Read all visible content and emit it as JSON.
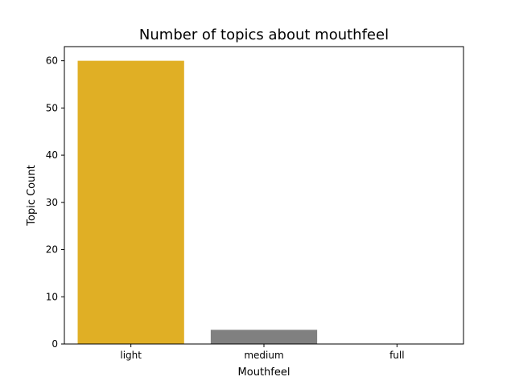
{
  "chart_data": {
    "type": "bar",
    "title": "Number of topics about mouthfeel",
    "xlabel": "Mouthfeel",
    "ylabel": "Topic Count",
    "categories": [
      "light",
      "medium",
      "full"
    ],
    "values": [
      60,
      3,
      0
    ],
    "colors": [
      "#e0af25",
      "#808080",
      "#808080"
    ],
    "ylim": [
      0,
      63
    ],
    "yticks": [
      0,
      10,
      20,
      30,
      40,
      50,
      60
    ],
    "grid": false,
    "legend": "none"
  }
}
